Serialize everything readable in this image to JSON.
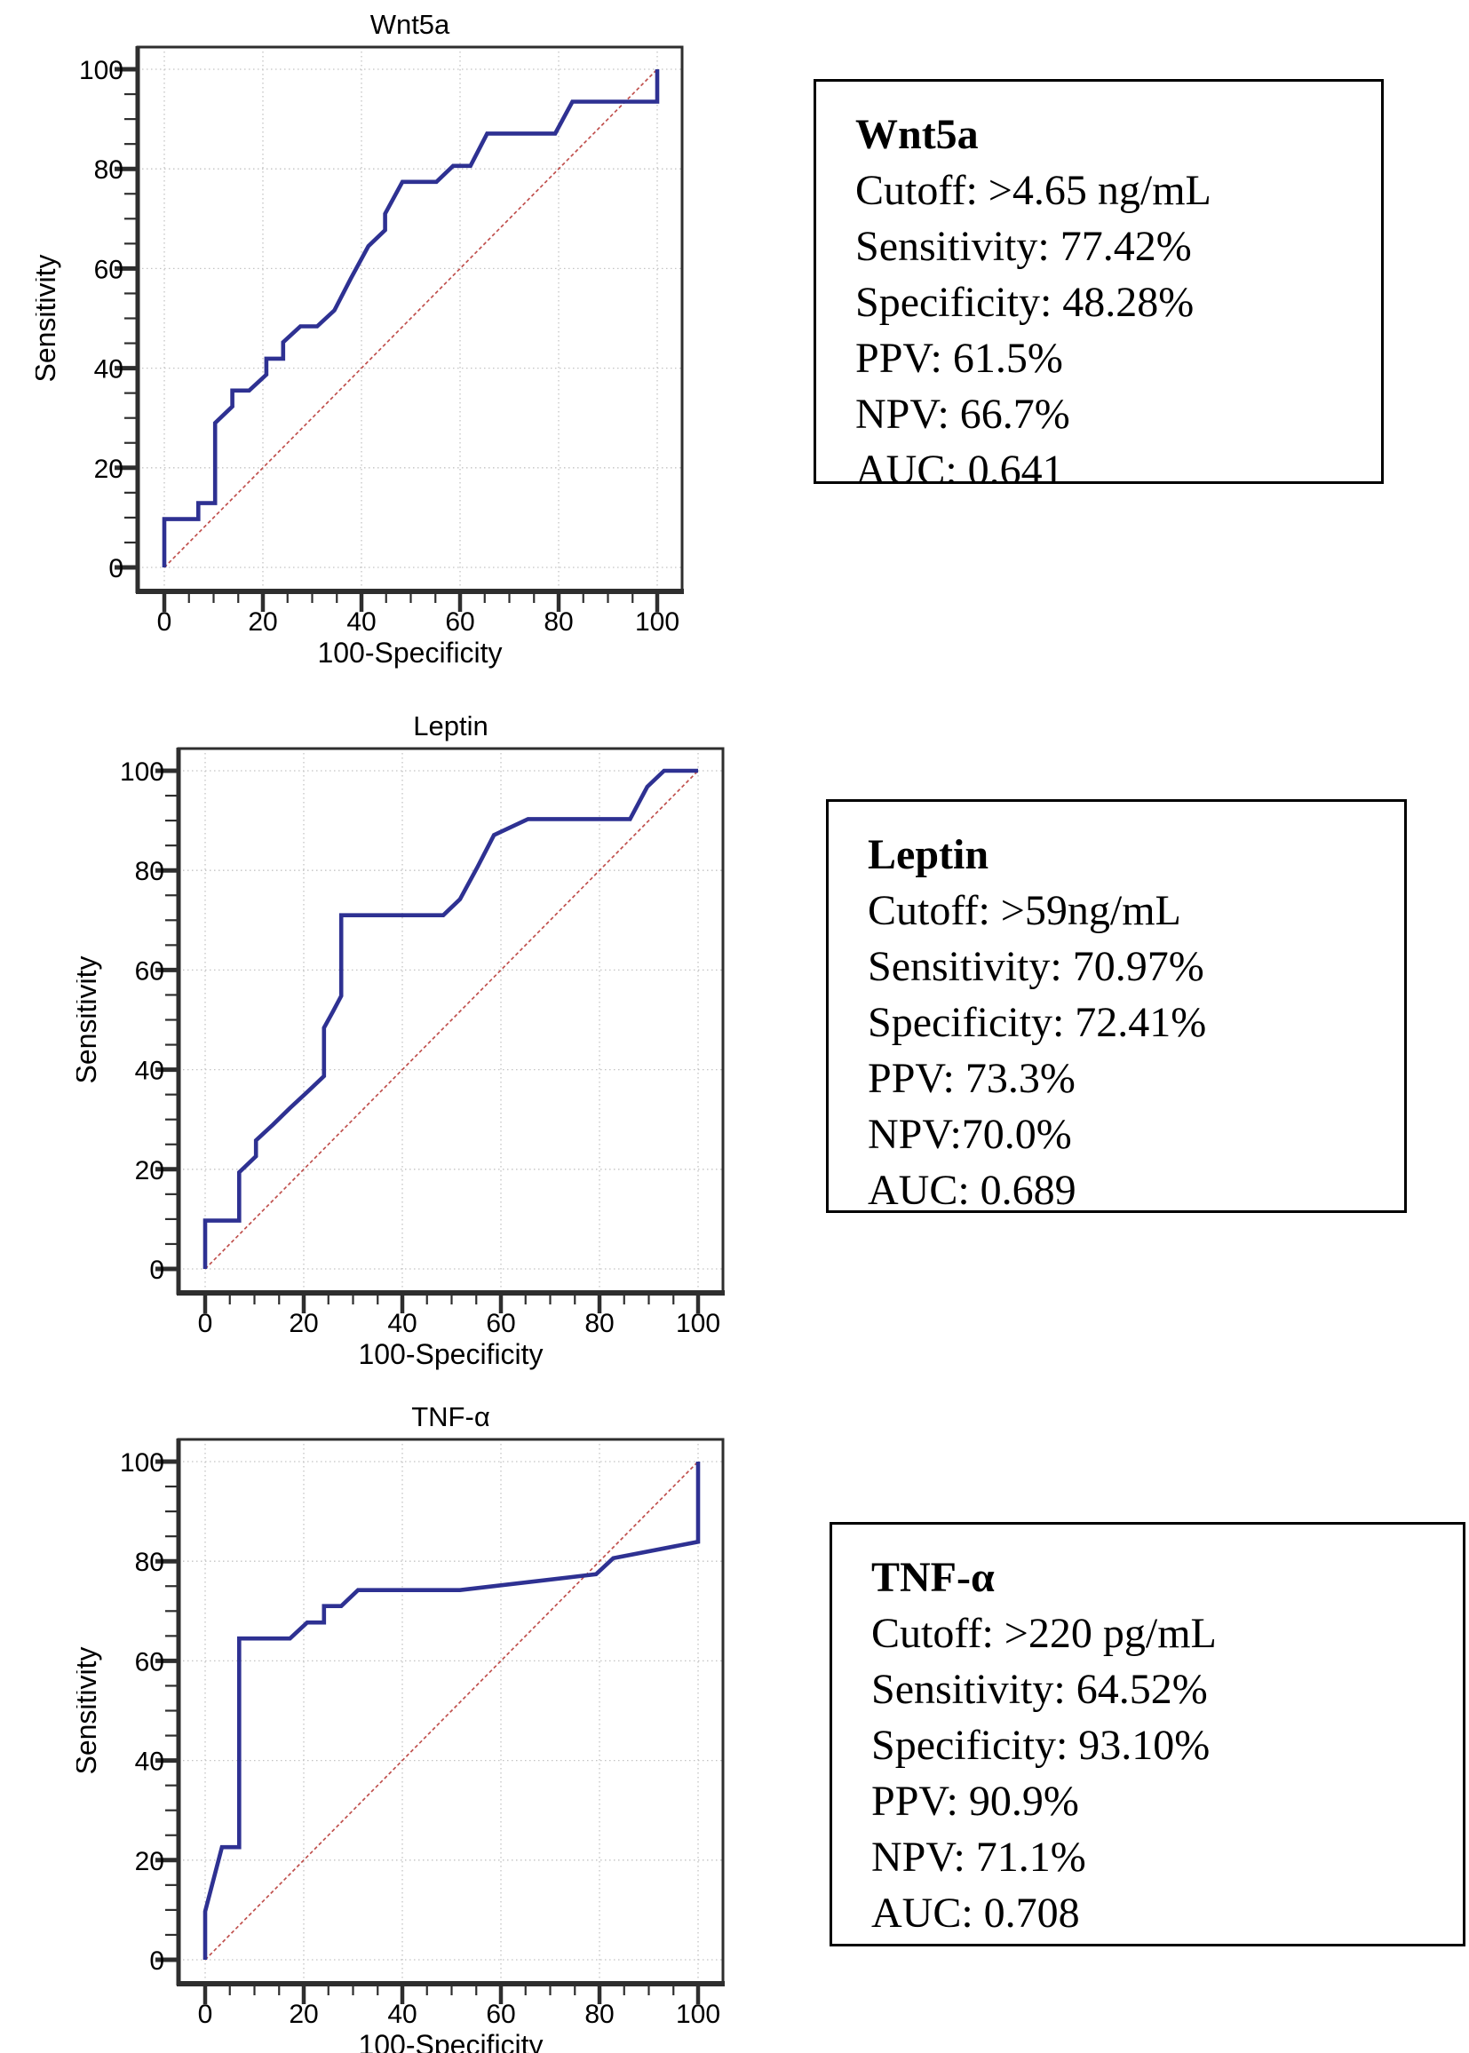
{
  "colors": {
    "background": "#ffffff",
    "curve": "#2e3192",
    "reference": "#c0504d",
    "grid": "#c3c3c3",
    "axis": "#2e2e2e",
    "text": "#000000"
  },
  "axes": {
    "xlabel": "100-Specificity",
    "ylabel": "Sensitivity",
    "ticks": [
      0,
      20,
      40,
      60,
      80,
      100
    ],
    "minor_tick_step": 5,
    "xlim": [
      0,
      100
    ],
    "ylim": [
      0,
      100
    ]
  },
  "chart_data": [
    {
      "type": "line",
      "title": "Wnt5a",
      "xlabel": "100-Specificity",
      "ylabel": "Sensitivity",
      "xlim": [
        0,
        100
      ],
      "ylim": [
        0,
        100
      ],
      "grid": true,
      "legend_position": "none",
      "series": [
        {
          "name": "ROC curve",
          "color": "#2e3192",
          "points": [
            [
              0,
              0
            ],
            [
              0,
              9.7
            ],
            [
              6.9,
              9.7
            ],
            [
              6.9,
              12.9
            ],
            [
              10.3,
              12.9
            ],
            [
              10.3,
              29
            ],
            [
              13.8,
              32.3
            ],
            [
              13.8,
              35.5
            ],
            [
              17.2,
              35.5
            ],
            [
              20.7,
              38.7
            ],
            [
              20.7,
              41.9
            ],
            [
              24.1,
              41.9
            ],
            [
              24.1,
              45.2
            ],
            [
              27.6,
              48.4
            ],
            [
              31,
              48.4
            ],
            [
              34.5,
              51.6
            ],
            [
              37.9,
              58.1
            ],
            [
              41.4,
              64.5
            ],
            [
              44.8,
              67.7
            ],
            [
              44.8,
              71
            ],
            [
              48.3,
              77.4
            ],
            [
              55.2,
              77.4
            ],
            [
              58.6,
              80.6
            ],
            [
              62.1,
              80.6
            ],
            [
              65.5,
              87.1
            ],
            [
              79.3,
              87.1
            ],
            [
              82.8,
              93.5
            ],
            [
              100,
              93.5
            ],
            [
              100,
              100
            ]
          ]
        },
        {
          "name": "reference diagonal",
          "color": "#c0504d",
          "points": [
            [
              0,
              0
            ],
            [
              100,
              100
            ]
          ]
        }
      ],
      "stats": {
        "heading": "Wnt5a",
        "cutoff": "Cutoff: >4.65 ng/mL",
        "sensitivity": "Sensitivity: 77.42%",
        "specificity": "Specificity: 48.28%",
        "ppv": "PPV: 61.5%",
        "npv": "NPV: 66.7%",
        "auc": "AUC: 0.641"
      }
    },
    {
      "type": "line",
      "title": "Leptin",
      "xlabel": "100-Specificity",
      "ylabel": "Sensitivity",
      "xlim": [
        0,
        100
      ],
      "ylim": [
        0,
        100
      ],
      "grid": true,
      "legend_position": "none",
      "series": [
        {
          "name": "ROC curve",
          "color": "#2e3192",
          "points": [
            [
              0,
              0
            ],
            [
              0,
              9.7
            ],
            [
              6.9,
              9.7
            ],
            [
              6.9,
              19.4
            ],
            [
              10.3,
              22.6
            ],
            [
              10.3,
              25.8
            ],
            [
              13.8,
              29
            ],
            [
              17.2,
              32.3
            ],
            [
              20.7,
              35.5
            ],
            [
              24.1,
              38.7
            ],
            [
              24.1,
              48.4
            ],
            [
              25.9,
              51.6
            ],
            [
              27.6,
              54.8
            ],
            [
              27.6,
              71
            ],
            [
              48.3,
              71
            ],
            [
              51.7,
              74.2
            ],
            [
              55.2,
              80.6
            ],
            [
              58.6,
              87.1
            ],
            [
              65.5,
              90.3
            ],
            [
              86.2,
              90.3
            ],
            [
              89.7,
              96.8
            ],
            [
              93.1,
              100
            ],
            [
              100,
              100
            ]
          ]
        },
        {
          "name": "reference diagonal",
          "color": "#c0504d",
          "points": [
            [
              0,
              0
            ],
            [
              100,
              100
            ]
          ]
        }
      ],
      "stats": {
        "heading": "Leptin",
        "cutoff": "Cutoff: >59ng/mL",
        "sensitivity": "Sensitivity: 70.97%",
        "specificity": "Specificity: 72.41%",
        "ppv": "PPV: 73.3%",
        "npv": "NPV:70.0%",
        "auc": "AUC: 0.689"
      }
    },
    {
      "type": "line",
      "title": "TNF-α",
      "xlabel": "100-Specificity",
      "ylabel": "Sensitivity",
      "xlim": [
        0,
        100
      ],
      "ylim": [
        0,
        100
      ],
      "grid": true,
      "legend_position": "none",
      "series": [
        {
          "name": "ROC curve",
          "color": "#2e3192",
          "points": [
            [
              0,
              0
            ],
            [
              0,
              9.7
            ],
            [
              3.4,
              22.6
            ],
            [
              6.9,
              22.6
            ],
            [
              6.9,
              64.5
            ],
            [
              17.2,
              64.5
            ],
            [
              20.7,
              67.7
            ],
            [
              24.1,
              67.7
            ],
            [
              24.1,
              71
            ],
            [
              27.6,
              71
            ],
            [
              31,
              74.2
            ],
            [
              51.7,
              74.2
            ],
            [
              79.3,
              77.4
            ],
            [
              82.8,
              80.6
            ],
            [
              100,
              83.9
            ],
            [
              100,
              100
            ]
          ]
        },
        {
          "name": "reference diagonal",
          "color": "#c0504d",
          "points": [
            [
              0,
              0
            ],
            [
              100,
              100
            ]
          ]
        }
      ],
      "stats": {
        "heading": "TNF-α",
        "cutoff": "Cutoff: >220 pg/mL",
        "sensitivity": "Sensitivity: 64.52%",
        "specificity": "Specificity: 93.10%",
        "ppv": "PPV: 90.9%",
        "npv": "NPV: 71.1%",
        "auc": "AUC: 0.708"
      }
    }
  ]
}
